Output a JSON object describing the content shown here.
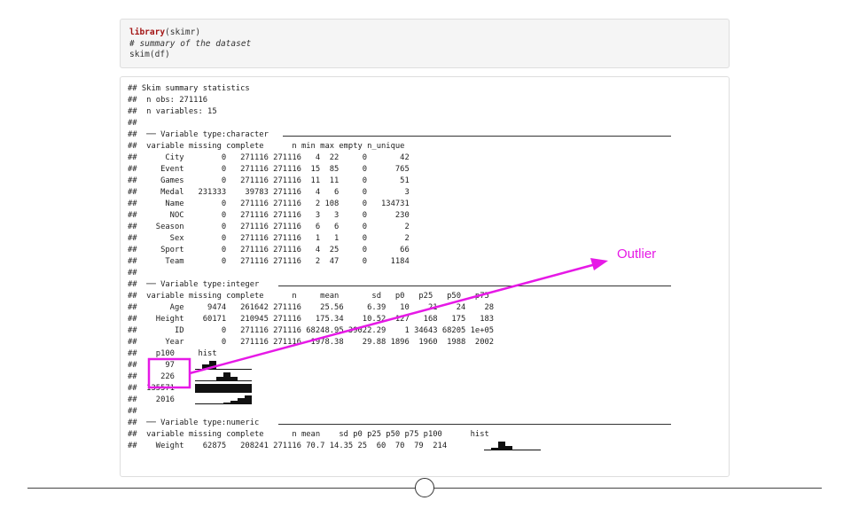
{
  "code_chunk": {
    "lines": [
      {
        "kw": "library",
        "rest": "(skimr)"
      },
      {
        "comment": "# summary of the dataset"
      },
      {
        "plain": "skim(df)"
      }
    ]
  },
  "output": {
    "header": [
      "## Skim summary statistics",
      "##  n obs: 271116",
      "##  n variables: 15",
      "##"
    ],
    "character_section": {
      "title": "##  ── Variable type:character",
      "header": "##  variable missing complete      n min max empty n_unique",
      "rows": [
        "##      City        0   271116 271116   4  22     0       42",
        "##     Event        0   271116 271116  15  85     0      765",
        "##     Games        0   271116 271116  11  11     0       51",
        "##     Medal   231333    39783 271116   4   6     0        3",
        "##      Name        0   271116 271116   2 108     0   134731",
        "##       NOC        0   271116 271116   3   3     0      230",
        "##    Season        0   271116 271116   6   6     0        2",
        "##       Sex        0   271116 271116   1   1     0        2",
        "##     Sport        0   271116 271116   4  25     0       66",
        "##      Team        0   271116 271116   2  47     0     1184",
        "##"
      ]
    },
    "integer_section": {
      "title": "##  ── Variable type:integer",
      "header": "##  variable missing complete      n     mean       sd   p0   p25   p50   p75",
      "rows": [
        "##       Age     9474   261642 271116    25.56     6.39   10    21    24    28",
        "##    Height    60171   210945 271116   175.34    10.52  127   168   175   183",
        "##        ID        0   271116 271116 68248.95 39022.29    1 34643 68205 1e+05",
        "##      Year        0   271116 271116  1978.38    29.88 1896  1960  1988  2002"
      ],
      "p100_header": "##    p100     hist",
      "p100_rows": [
        "##      97",
        "##     226",
        "##  135571",
        "##    2016"
      ],
      "blank": "##"
    },
    "numeric_section": {
      "title": "##  ── Variable type:numeric",
      "header": "##  variable missing complete      n mean    sd p0 p25 p50 p75 p100      hist",
      "row": "##    Weight    62875   208241 271116 70.7 14.35 25  60  70  79  214"
    }
  },
  "histograms": {
    "age": [
      0.0,
      0.6,
      1.0,
      0.1,
      0.0,
      0.0,
      0.0,
      0.0
    ],
    "height": [
      0.0,
      0.0,
      0.1,
      0.5,
      1.0,
      0.5,
      0.1,
      0.0
    ],
    "id": [
      1.0,
      1.0,
      1.0,
      1.0,
      1.0,
      1.0,
      1.0,
      1.0
    ],
    "year": [
      0.0,
      0.0,
      0.0,
      0.1,
      0.2,
      0.4,
      0.7,
      1.0
    ],
    "weight": [
      0.0,
      0.3,
      1.0,
      0.5,
      0.1,
      0.0,
      0.0,
      0.0
    ]
  },
  "annotation": {
    "label": "Outlier",
    "color": "#e619e6"
  }
}
